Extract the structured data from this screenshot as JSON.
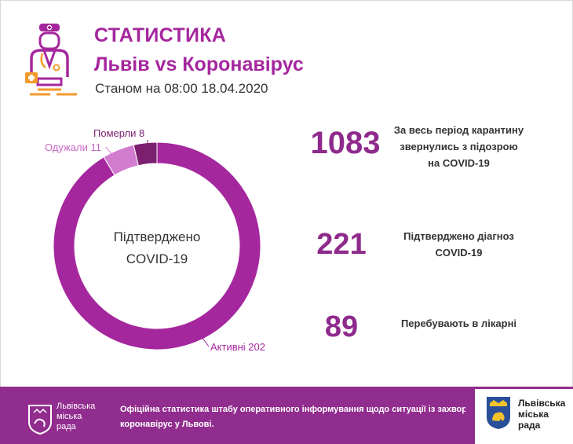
{
  "header": {
    "title": "СТАТИСТИКА",
    "subtitle": "Львів vs Коронавірус",
    "as_of": "Станом на 08:00 18.04.2020"
  },
  "chart_data": {
    "type": "pie",
    "center_label_line1": "Підтверджено",
    "center_label_line2": "COVID-19",
    "categories": [
      "Активні",
      "Одужали",
      "Померли"
    ],
    "values": [
      202,
      11,
      8
    ],
    "labels": [
      "Активні 202",
      "Одужали 11",
      "Померли 8"
    ],
    "colors": [
      "#a5279e",
      "#d27ccf",
      "#7c1f6f"
    ],
    "total": 221
  },
  "stats": [
    {
      "value": "1083",
      "description_lines": [
        "За весь період карантину",
        "звернулись з підозрою",
        "на COVID-19"
      ]
    },
    {
      "value": "221",
      "description_lines": [
        "Підтверджено діагноз",
        "COVID-19"
      ]
    },
    {
      "value": "89",
      "description_lines": [
        "Перебувають в лікарні"
      ]
    }
  ],
  "footer": {
    "brand_left_lines": [
      "Львівська",
      "міська",
      "рада"
    ],
    "text_line1": "Офіційна статистика штабу оперативного інформування щодо ситуації із захворюванням",
    "text_line2": "коронавірус у Львові.",
    "card_lines": [
      "Львівська",
      "міська",
      "рада"
    ]
  },
  "colors": {
    "brand": "#a5279e",
    "footer_bg": "#912d8f",
    "doctor_orange": "#f39a2b"
  }
}
